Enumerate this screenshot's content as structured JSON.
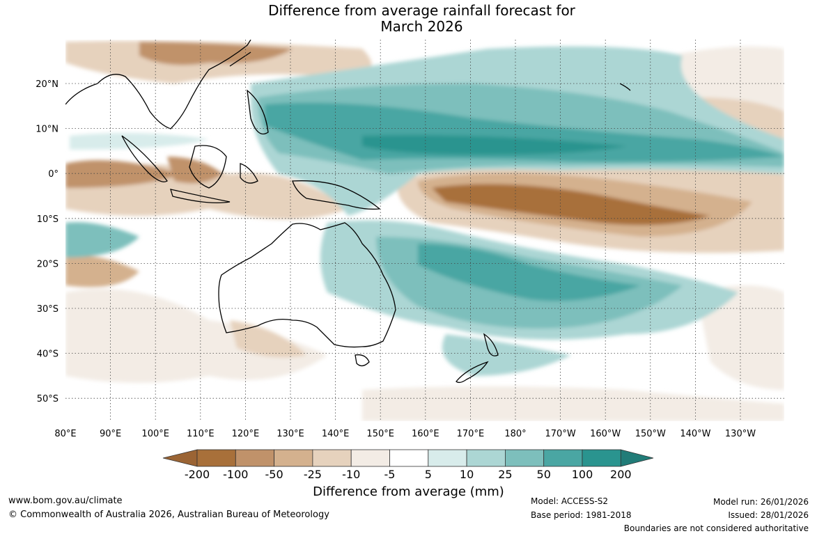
{
  "title": {
    "line1": "Difference from average rainfall forecast for",
    "line2": "March 2026"
  },
  "map": {
    "lat_labels": [
      "20°N",
      "10°N",
      "0°",
      "10°S",
      "20°S",
      "30°S",
      "40°S",
      "50°S"
    ],
    "lon_labels": [
      "80°E",
      "90°E",
      "100°E",
      "110°E",
      "120°E",
      "130°E",
      "140°E",
      "150°E",
      "160°E",
      "170°E",
      "180°",
      "170°W",
      "160°W",
      "150°W",
      "140°W",
      "130°W"
    ]
  },
  "colorbar": {
    "ticks": [
      "-200",
      "-100",
      "-50",
      "-25",
      "-10",
      "-5",
      "5",
      "10",
      "25",
      "50",
      "100",
      "200"
    ],
    "colors": [
      "#a8703a",
      "#c0926a",
      "#d4b18e",
      "#e6d2bd",
      "#f3ece5",
      "#ffffff",
      "#d8eceb",
      "#acd6d4",
      "#7dbfbc",
      "#4aa6a3",
      "#2a948f"
    ],
    "under_color": "#9b6434",
    "over_color": "#217c78",
    "label": "Difference from average (mm)"
  },
  "footer": {
    "url": "www.bom.gov.au/climate",
    "copyright": "© Commonwealth of Australia 2026, Australian Bureau of Meteorology",
    "model": "Model: ACCESS-S2",
    "base_period": "Base period: 1981-2018",
    "model_run": "Model run: 26/01/2026",
    "issued": "Issued: 28/01/2026",
    "boundaries": "Boundaries are not considered authoritative"
  }
}
